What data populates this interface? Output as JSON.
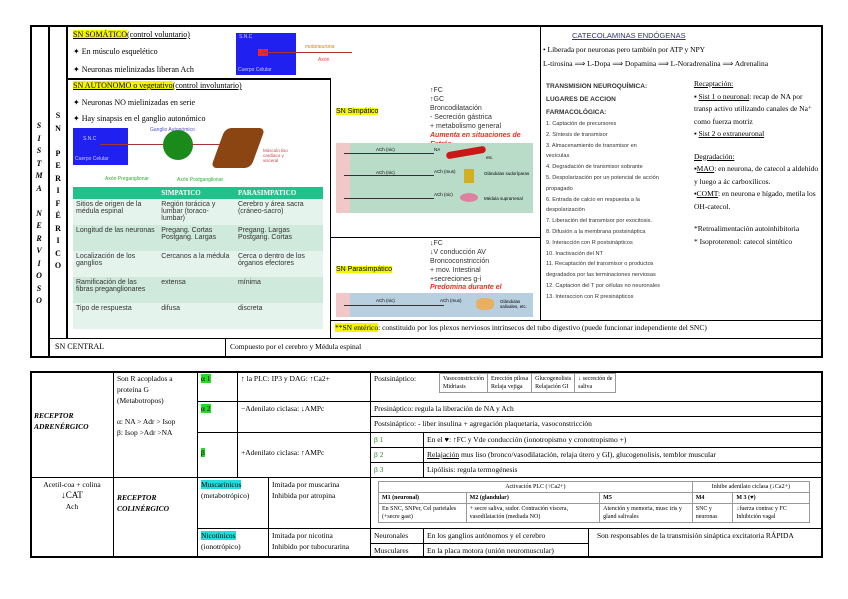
{
  "side": {
    "sistema_letters": [
      "S",
      "I",
      "S",
      "T",
      "M",
      "A",
      "",
      "N",
      "E",
      "R",
      "V",
      "I",
      "O",
      "S",
      "O"
    ],
    "periferico_letters": [
      "S",
      "N",
      "",
      "P",
      "E",
      "R",
      "I",
      "F",
      "É",
      "R",
      "I",
      "C",
      "O"
    ]
  },
  "somatico": {
    "title": "SN SOMÁTICO",
    "subtitle": "(control voluntario)",
    "bullets": [
      "En músculo esquelético",
      "Neuronas mielinizadas liberan Ach"
    ],
    "img": {
      "snc": "S.N.C",
      "cuerpo": "Cuerpo Celular",
      "motoneurona": "motoneurona",
      "axon": "Axón",
      "musculo": "Músculo esquelético"
    }
  },
  "autonomo": {
    "title": "SN AUTONOMO o vegetativo",
    "subtitle": "(control involuntario)",
    "bullets": [
      "Neuronas NO mielinizadas en serie",
      "Hay sinapsis en el ganglio autonómico"
    ],
    "img": {
      "snc": "S.N.C",
      "cuerpo": "Cuerpo Celular",
      "ganglio": "Ganglio Autonómico",
      "pre": "Axón Preganglionar",
      "post": "Axón Postganglionar",
      "musculo": "Músculo liso cardíaco y visceral"
    }
  },
  "comparison": {
    "headers": [
      "",
      "SIMPATICO",
      "PARASIMPATICO"
    ],
    "rows": [
      [
        "Sitios de origen de la médula espinal",
        "Región torácica y lumbar (toraco-lumbar)",
        "Cerebro y área sacra (cráneo-sacro)"
      ],
      [
        "Longitud de las neuronas",
        "Pregang. Cortas Postgang. Largas",
        "Pregang. Largas Postgang. Cortas"
      ],
      [
        "Localización de los ganglios",
        "Cercanos a la médula",
        "Cerca o dentro de los órganos efectores"
      ],
      [
        "Ramificación de las fibras preganglionares",
        "extensa",
        "mínima"
      ],
      [
        "Tipo de respuesta",
        "difusa",
        "discreta"
      ]
    ]
  },
  "simpatico": {
    "title": "SN Simpático",
    "effects": [
      "↑FC",
      "↑GC",
      "Broncodilatación",
      "- Secreción gástrica",
      "+ metabolismo general"
    ],
    "note": "Aumenta en situaciones de Estrés",
    "labels": [
      "ACh (nic)",
      "NA",
      "ACh (nic)",
      "ACh (mus)",
      "Glándulas sudoríparas",
      "ACh (nic)",
      "Médula suprarrenal",
      "etc."
    ]
  },
  "parasimpatico": {
    "title": "SN Parasimpático",
    "effects": [
      "↓FC",
      "↓V conducción AV",
      "Broncoconstricción",
      "+ mov. Intestinal",
      "+secreciones g-i"
    ],
    "note": "Predomina durante el",
    "labels": [
      "ACh (nic)",
      "ACh (mus)",
      "Glándulas salivales, etc."
    ]
  },
  "enterico": {
    "title": "**SN entérico",
    "text": ": constituido por los plexos nerviosos intrínsecos del tubo digestivo (puede funcionar independiente del SNC)"
  },
  "central": {
    "label": "SN CENTRAL",
    "text": "Compuesto por el cerebro y Médula espinal"
  },
  "catecol": {
    "title": "CATECOLAMINAS ENDÓGENAS",
    "line1": "• Liberada por neuronas pero también por ATP y NPY",
    "line2": "L-tirosina ⟹ L-Dopa ⟹ Dopamina ⟹ L-Noradrenalina ⟹ Adrenalina",
    "trans_title": [
      "TRANSMISION NEUROQUÍMICA:",
      "LUGARES DE ACCION",
      "FARMACOLÓGICA:"
    ],
    "trans_list": [
      "1. Captación de precursores",
      "2. Síntesis de transmisor",
      "3. Almacenamiento de transmisor en",
      "vesículas",
      "4. Degradación de transmisor sobrante",
      "5. Despolarización por un potencial de acción",
      "propagado",
      "6. Entrada de calcio en respuesta a la",
      "despolarización",
      "7. Liberación del transmisor por exocitosis.",
      "8. Difusión a la membrana postsináptica",
      "9. Interacción con R postsinápticos",
      "10. Inactivación del NT",
      "11. Recaptación del transmisor o productos",
      "degradados por las terminaciones nerviosas",
      "12. Captacion del T por células no neuronales",
      "13. Interaccion con R presinápticos"
    ],
    "recap_title": "Recaptación:",
    "recap1_u": "Sist 1 o neuronal",
    "recap1": ": recap de NA por transp activo utilizando canales de Na⁺ como fuerza motriz",
    "recap2_u": "Sist 2 o extraneuronal",
    "degr_title": "Degradación:",
    "mao_u": "MAO",
    "mao": ": en neurona, de catecol a aldehído y luego a ác carboxílicos.",
    "comt_u": "COMT",
    "comt": ": en neurona e hígado, metila los OH-catecol.",
    "retro": "*Retroalimentación autoinhibitoria",
    "iso": "* Isoproterenol: catecol sintético"
  },
  "adrenergico": {
    "label": "RECEPTOR ADRENÉRGICO",
    "desc": [
      "Son R acoplados a",
      "proteína G",
      "(Metabotropos)"
    ],
    "alpha_order": "α: NA > Adr > Isop",
    "beta_order": "β: Isop >Adr >NA",
    "a1": {
      "name": "α 1",
      "mech": "↑ la PLC: IP3 y DAG: ↑Ca2+",
      "post": "Postsináptico:",
      "effects": [
        [
          "Vasoconstricción",
          "Midriasis"
        ],
        [
          "Erección pilosa",
          "Relaja vejiga"
        ],
        [
          "Glucogenolisis",
          "Relajación GI"
        ],
        [
          "↓ secreción de",
          "saliva"
        ]
      ]
    },
    "a2": {
      "name": "α 2",
      "mech": "−Adenilato ciclasa: ↓AMPc",
      "pre": "Presináptico: regula la liberación de NA y Ach",
      "post": "Postsináptico: - liber insulina + agregación plaquetaria, vasoconstricción"
    },
    "b": {
      "name": "β",
      "mech": "+Adenilato ciclasa: ↑AMPc",
      "rows": [
        {
          "name": "β 1",
          "text": "En el ♥: ↑FC y Vde conducción (ionotropismo y cronotropismo +)"
        },
        {
          "name": "β 2",
          "text_u": "Relajación",
          "text": " mus liso (bronco/vasodilatación, relaja útero y GI), glucogenolisis, temblor muscular"
        },
        {
          "name": "β 3",
          "text": "Lipólisis: regula termogénesis"
        }
      ]
    }
  },
  "colinergico": {
    "synth": [
      "Acetil-coa + colina",
      "↓CAT",
      "Ach"
    ],
    "label": "RECEPTOR COLINÉRGICO",
    "musc": {
      "name": "Muscarínicos",
      "type": "(metabotrópico)",
      "mimic": "Imitada por muscarina",
      "inhib": "Inhibida por atropina",
      "groups": [
        "Activación PLC (↑Ca2+)",
        "Inhibe adenilato ciclasa (↓Ca2+)"
      ],
      "subtypes": [
        {
          "name": "M1 (neuronal)",
          "text": "En SNC, SNPer, Cel parietales (+secre gast)"
        },
        {
          "name": "M2 (glandular)",
          "text": "+ secre saliva, sudor. Contración víscera, vasodilatación (mediada NO)"
        },
        {
          "name": "M5",
          "text": "Atención y memoria, musc iris y gland salivales"
        },
        {
          "name": "M4",
          "text": "SNC y neuronas"
        },
        {
          "name": "M 3 (♥)",
          "text": "↓fuerza contrac y FC Inhibición vagal"
        }
      ]
    },
    "nic": {
      "name": "Nicotínicos",
      "type": "(ionotrópico)",
      "mimic": "Imitada por nicotina",
      "inhib": "Inhibido por tubocurarina",
      "rows": [
        [
          "Neuronales",
          "En los ganglios autónomos y el cerebro"
        ],
        [
          "Musculares",
          "En la placa motora (unión neuromuscular)"
        ]
      ],
      "note": "Son responsables de la transmisión sináptica excitatoria RÁPIDA"
    }
  },
  "colors": {
    "highlight": "#f5f500",
    "green": "#22dd22",
    "cyan": "#22dddd",
    "table_header": "#1fc28a",
    "snc_blue": "#2020f0",
    "muscle": "#8b4513",
    "red_note": "#e83020"
  }
}
